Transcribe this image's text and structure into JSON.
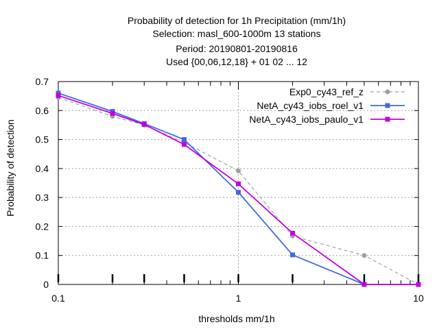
{
  "chart_data": {
    "type": "line",
    "title_lines": [
      "Probability of detection  for 1h Precipitation (mm/1h)",
      "Selection: masl_600-1000m     13 stations",
      "Period: 20190801-20190816",
      "Used {00,06,12,18} + 01 02 ... 12"
    ],
    "xlabel": "thresholds mm/1h",
    "ylabel": "Probability of detection",
    "xscale": "log",
    "xlim": [
      0.1,
      10
    ],
    "ylim": [
      0,
      0.7
    ],
    "x_ticks": [
      0.1,
      1,
      10
    ],
    "x_tick_labels": [
      "0.1",
      "1",
      "10"
    ],
    "y_ticks": [
      0,
      0.1,
      0.2,
      0.3,
      0.4,
      0.5,
      0.6,
      0.7
    ],
    "y_tick_labels": [
      "0",
      "0.1",
      "0.2",
      "0.3",
      "0.4",
      "0.5",
      "0.6",
      "0.7"
    ],
    "grid": true,
    "legend_position": "top-right",
    "series": [
      {
        "name": "Exp0_cy43_ref_z",
        "color": "#a0a0a0",
        "dashed": true,
        "marker": "circle",
        "x": [
          0.1,
          0.2,
          0.3,
          0.5,
          1,
          2,
          5,
          10
        ],
        "y": [
          0.645,
          0.58,
          0.55,
          0.49,
          0.392,
          0.167,
          0.1,
          0.0
        ]
      },
      {
        "name": "NetA_cy43_iobs_roel_v1",
        "color": "#4169e1",
        "dashed": false,
        "marker": "square",
        "x": [
          0.1,
          0.2,
          0.3,
          0.5,
          1,
          2,
          5,
          10
        ],
        "y": [
          0.66,
          0.597,
          0.555,
          0.5,
          0.318,
          0.102,
          0.0,
          0.0
        ]
      },
      {
        "name": "NetA_cy43_iobs_paulo_v1",
        "color": "#c000e0",
        "dashed": false,
        "marker": "square",
        "x": [
          0.1,
          0.2,
          0.3,
          0.5,
          1,
          2,
          5,
          10
        ],
        "y": [
          0.652,
          0.59,
          0.552,
          0.483,
          0.347,
          0.177,
          0.0,
          0.0
        ]
      }
    ]
  }
}
